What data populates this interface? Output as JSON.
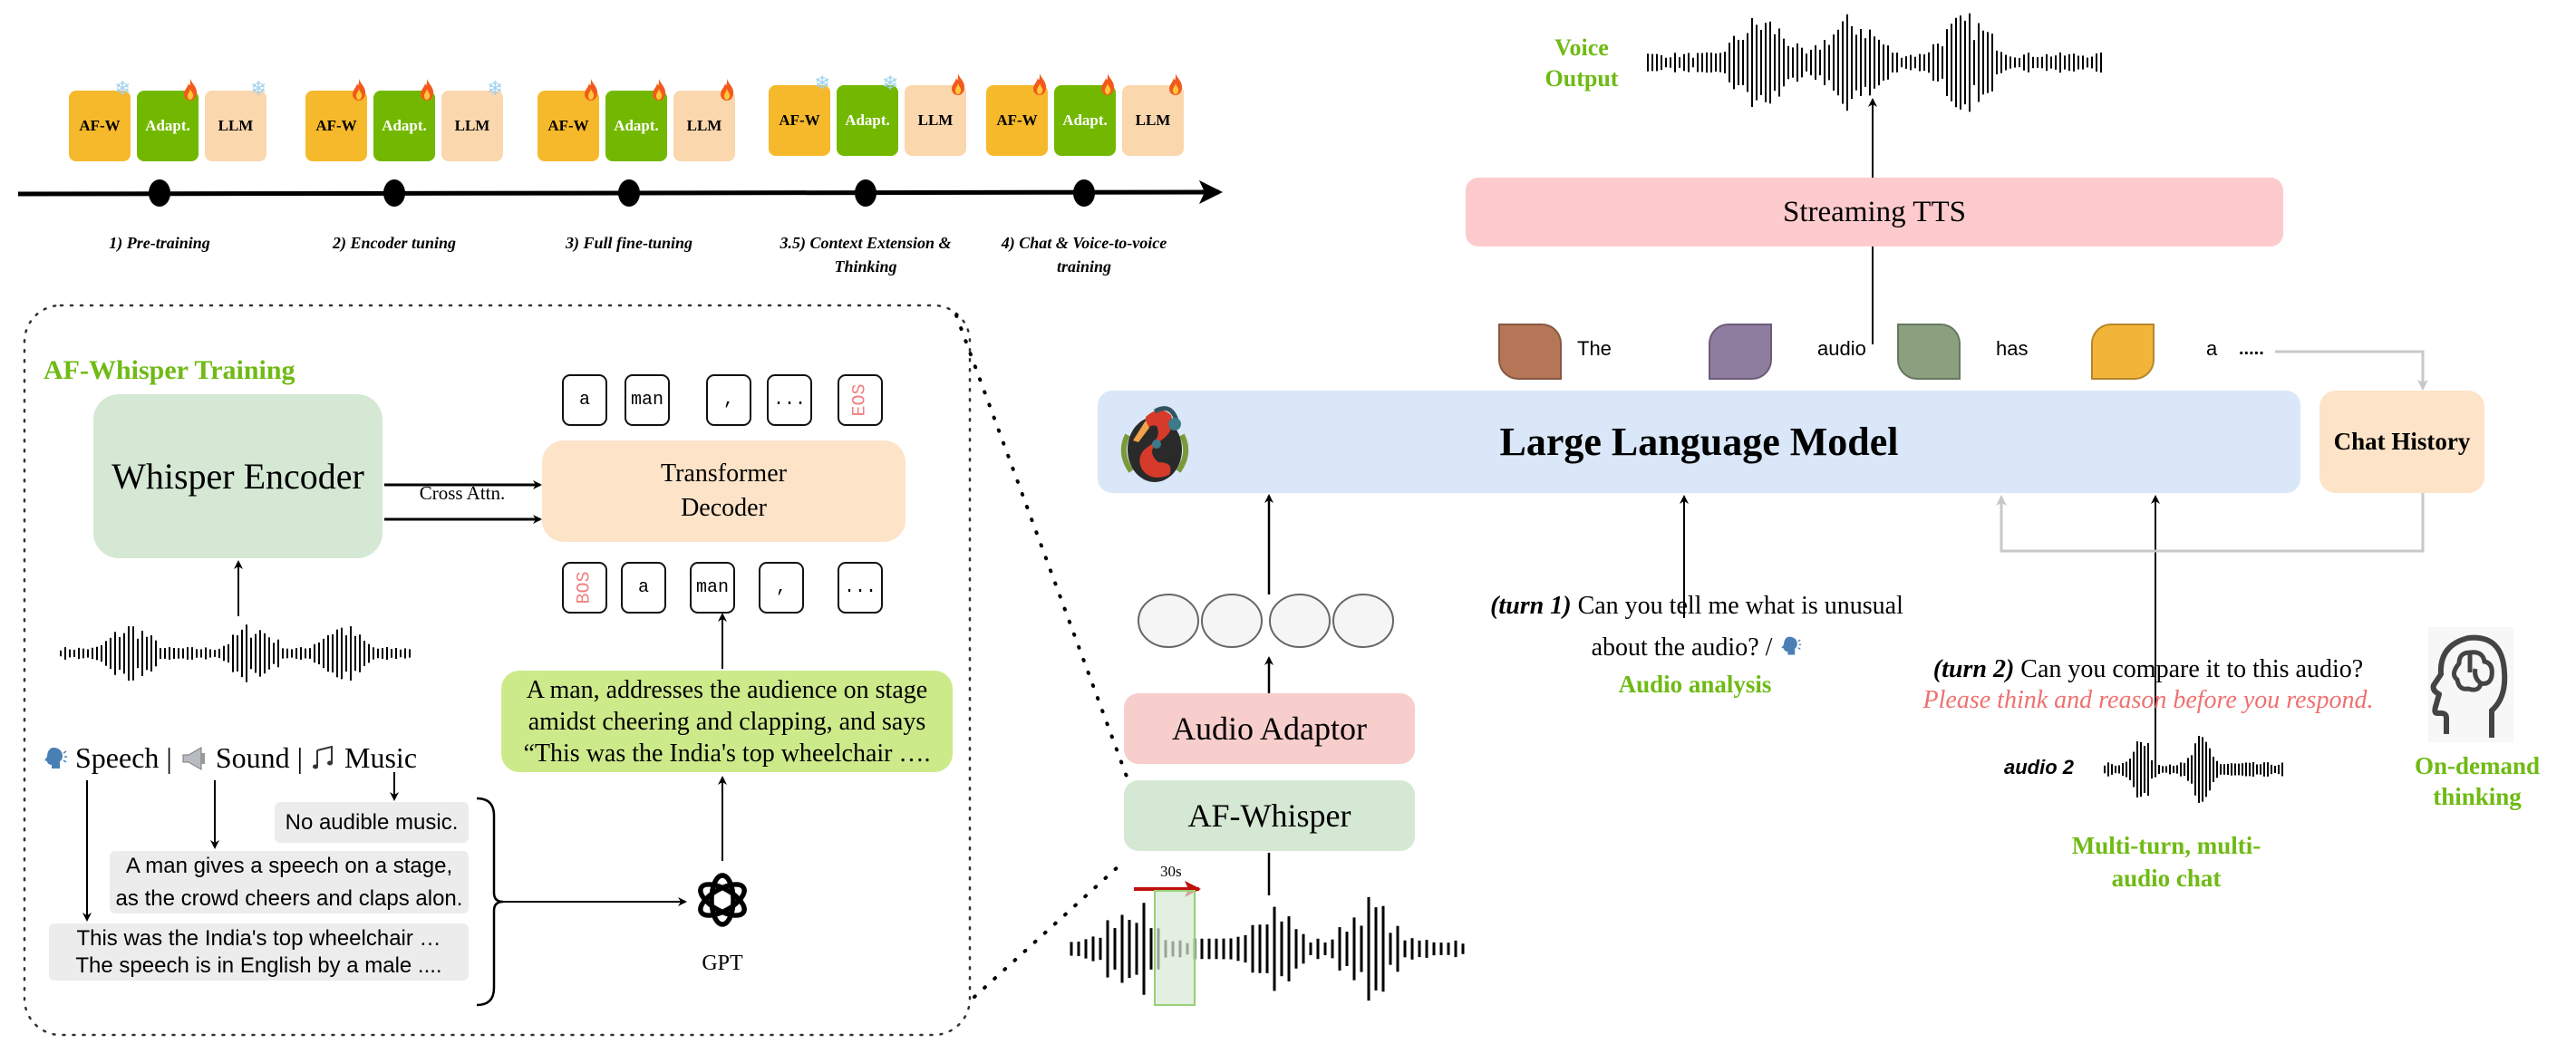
{
  "timeline": {
    "stages": [
      {
        "label": "1) Pre-training",
        "blocks": [
          {
            "name": "AF-W",
            "state": "frozen"
          },
          {
            "name": "Adapt.",
            "state": "trainable"
          },
          {
            "name": "LLM",
            "state": "frozen"
          }
        ]
      },
      {
        "label": "2) Encoder tuning",
        "blocks": [
          {
            "name": "AF-W",
            "state": "trainable"
          },
          {
            "name": "Adapt.",
            "state": "trainable"
          },
          {
            "name": "LLM",
            "state": "frozen"
          }
        ]
      },
      {
        "label": "3) Full fine-tuning",
        "blocks": [
          {
            "name": "AF-W",
            "state": "trainable"
          },
          {
            "name": "Adapt.",
            "state": "trainable"
          },
          {
            "name": "LLM",
            "state": "trainable"
          }
        ]
      },
      {
        "label": "3.5) Context Extension & Thinking",
        "blocks": [
          {
            "name": "AF-W",
            "state": "frozen"
          },
          {
            "name": "Adapt.",
            "state": "frozen"
          },
          {
            "name": "LLM",
            "state": "trainable"
          }
        ]
      },
      {
        "label": "4) Chat & Voice-to-voice training",
        "blocks": [
          {
            "name": "AF-W",
            "state": "trainable"
          },
          {
            "name": "Adapt.",
            "state": "trainable"
          },
          {
            "name": "LLM",
            "state": "trainable"
          }
        ]
      }
    ],
    "icons": {
      "frozen": "snowflake-icon",
      "trainable": "fire-icon"
    }
  },
  "afwhisper_training": {
    "title": "AF-Whisper Training",
    "encoder": "Whisper Encoder",
    "cross_attn": "Cross Attn.",
    "decoder_line1": "Transformer",
    "decoder_line2": "Decoder",
    "output_tokens": [
      "a",
      "man",
      ",",
      "...",
      "EOS"
    ],
    "input_tokens": [
      "BOS",
      "a",
      "man",
      ",",
      "..."
    ],
    "modalities": {
      "speech": "Speech",
      "sound": "Sound",
      "music": "Music",
      "sep": "|"
    },
    "music_caption": "No audible music.",
    "sound_caption": "A man gives a speech on a stage, as the crowd cheers and claps alon.",
    "speech_caption_1": "This was the India's top wheelchair …",
    "speech_caption_2": "The speech is in English by a male ....",
    "gpt_label": "GPT",
    "combined_caption": "A man, addresses the audience on stage amidst cheering and clapping, and says “This was the India's top wheelchair …."
  },
  "pipeline": {
    "af_whisper": "AF-Whisper",
    "audio_adaptor": "Audio Adaptor",
    "window_label": "30s",
    "llm": "Large Language Model",
    "chat_history": "Chat History",
    "tts": "Streaming TTS",
    "voice_output_1": "Voice",
    "voice_output_2": "Output",
    "output_tokens": [
      {
        "text": "The",
        "color": "#b57657"
      },
      {
        "text": "audio",
        "color": "#8f7da0"
      },
      {
        "text": "has",
        "color": "#8aa07f"
      },
      {
        "text": "a",
        "color": "#f2b53a"
      }
    ],
    "ellipsis": ".....",
    "turn1_tag": "(turn 1)",
    "turn1_text_1": "Can you tell me what is unusual",
    "turn1_text_2": "about the audio? /",
    "turn1_caption": "Audio analysis",
    "turn2_tag": "(turn 2)",
    "turn2_text": "Can you compare it to this audio?",
    "turn2_instruction": "Please think and reason before you respond.",
    "audio2_label": "audio 2",
    "multiturn_1": "Multi-turn, multi-",
    "multiturn_2": "audio chat",
    "thinking_1": "On-demand",
    "thinking_2": "thinking"
  },
  "colors": {
    "accent_green": "#6fba14",
    "instruction_red": "#f07070",
    "llm_blue": "#d9e7f8",
    "tts_pink": "#fdcbcd",
    "encoder_green": "#d5e8d4",
    "decoder_peach": "#fde3c8",
    "caption_green": "#cdea8a"
  }
}
